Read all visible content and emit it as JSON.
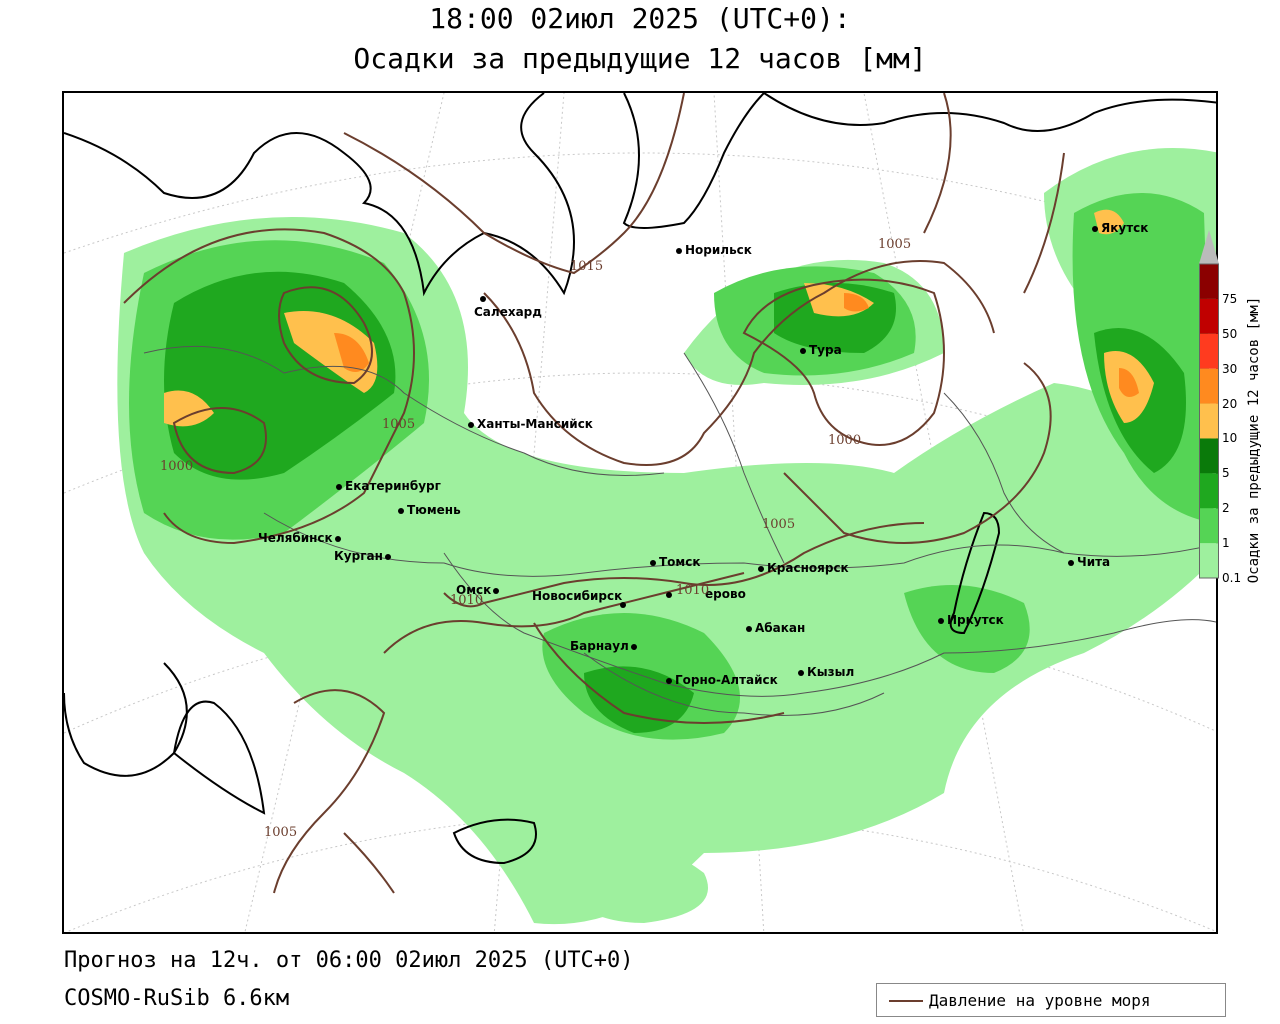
{
  "header": {
    "title_line1": "18:00 02июл 2025 (UTC+0):",
    "title_line2": "Осадки за предыдущие 12 часов [мм]"
  },
  "footer": {
    "forecast_line": "Прогноз на 12ч. от 06:00 02июл 2025 (UTC+0)",
    "model_line": "COSMO-RuSib 6.6км"
  },
  "legend": {
    "label": "Давление на уровне моря",
    "line_color": "#6b3e2e"
  },
  "colorbar": {
    "title": "Осадки за предыдущие 12 часов [мм]",
    "ticks": [
      "0.1",
      "1",
      "2",
      "5",
      "10",
      "20",
      "30",
      "50",
      "75"
    ],
    "colors": [
      "#9ef09e",
      "#55d455",
      "#1fa81f",
      "#0a7a0a",
      "#ffc04d",
      "#ff8a1f",
      "#ff3b1f",
      "#c00000",
      "#8b0000"
    ]
  },
  "cities": [
    {
      "id": "norilsk",
      "name": "Норильск"
    },
    {
      "id": "yakutsk",
      "name": "Якутск"
    },
    {
      "id": "salekhard",
      "name": "Салехард"
    },
    {
      "id": "tura",
      "name": "Тура"
    },
    {
      "id": "khanty",
      "name": "Ханты-Мансийск"
    },
    {
      "id": "ekb",
      "name": "Екатеринбург"
    },
    {
      "id": "tyumen",
      "name": "Тюмень"
    },
    {
      "id": "chelyabinsk",
      "name": "Челябинск"
    },
    {
      "id": "kurgan",
      "name": "Курган"
    },
    {
      "id": "omsk",
      "name": "Омск"
    },
    {
      "id": "novosibirsk",
      "name": "Новосибирск"
    },
    {
      "id": "tomsk",
      "name": "Томск"
    },
    {
      "id": "kemerovo",
      "name": "ерово"
    },
    {
      "id": "krasnoyarsk",
      "name": "Красноярск"
    },
    {
      "id": "abakan",
      "name": "Абакан"
    },
    {
      "id": "barnaul",
      "name": "Барнаул"
    },
    {
      "id": "gorno",
      "name": "Горно-Алтайск"
    },
    {
      "id": "kyzyl",
      "name": "Кызыл"
    },
    {
      "id": "irkutsk",
      "name": "Иркутск"
    },
    {
      "id": "chita",
      "name": "Чита"
    }
  ],
  "isobar_labels": [
    "1015",
    "1005",
    "1000",
    "1005",
    "1010",
    "1010",
    "1005",
    "1000",
    "1005"
  ]
}
